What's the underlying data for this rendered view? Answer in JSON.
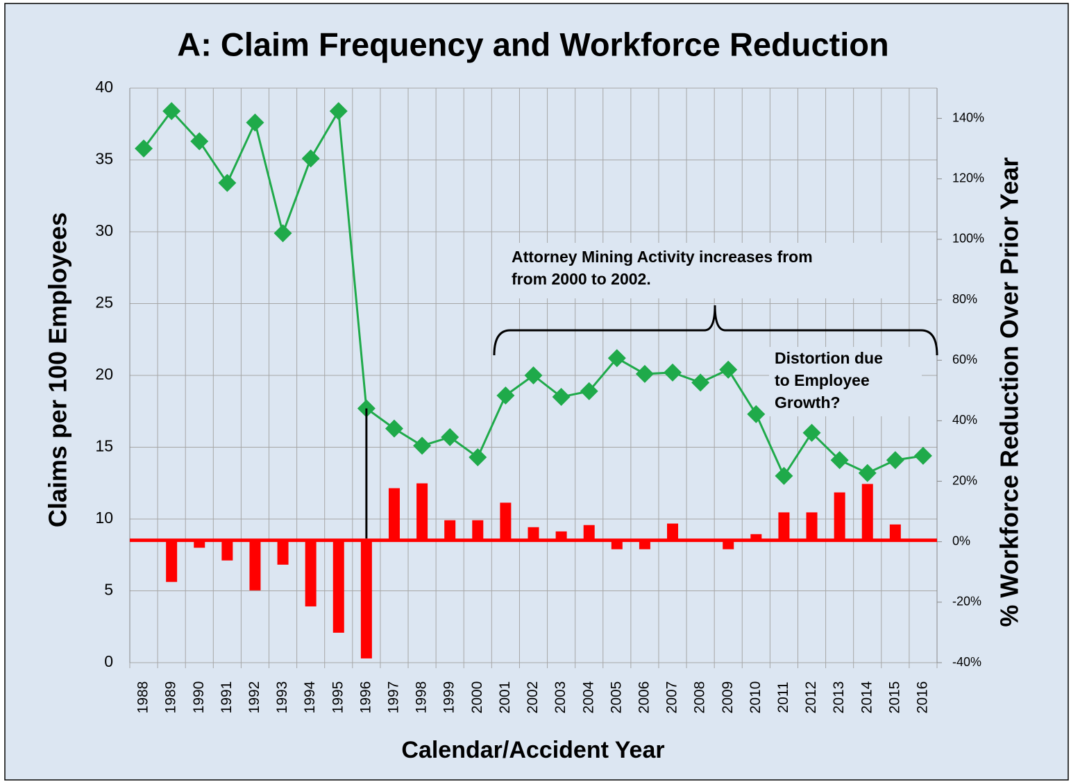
{
  "chart_data": {
    "type": "combo",
    "title": "A: Claim Frequency and Workforce Reduction",
    "xlabel": "Calendar/Accident Year",
    "ylabel": "Claims per 100 Employees",
    "y2label": "% Workforce Reduction Over Prior Year",
    "categories": [
      "1988",
      "1989",
      "1990",
      "1991",
      "1992",
      "1993",
      "1994",
      "1995",
      "1996",
      "1997",
      "1998",
      "1999",
      "2000",
      "2001",
      "2002",
      "2003",
      "2004",
      "2005",
      "2006",
      "2007",
      "2008",
      "2009",
      "2010",
      "2011",
      "2012",
      "2013",
      "2014",
      "2015",
      "2016"
    ],
    "series": [
      {
        "type": "line",
        "axis": "y",
        "color": "#1faa4a",
        "values": [
          35.8,
          38.4,
          36.3,
          33.4,
          37.6,
          29.9,
          35.1,
          38.4,
          17.7,
          16.3,
          15.1,
          15.7,
          14.3,
          18.6,
          20.0,
          18.5,
          18.9,
          21.2,
          20.1,
          20.2,
          19.5,
          20.4,
          17.3,
          13.0,
          16.0,
          14.1,
          13.2,
          14.1,
          14.4
        ]
      },
      {
        "type": "bar",
        "axis": "y2",
        "color": "#ff0000",
        "values": [
          0,
          -13.3,
          -2,
          -6.2,
          -16.1,
          -7.6,
          -21.4,
          -30.1,
          -38.6,
          17.7,
          19.3,
          7.1,
          7.1,
          12.9,
          4.8,
          3.4,
          5.5,
          -2.5,
          -2.5,
          6.0,
          0,
          -2.5,
          2.5,
          9.7,
          9.7,
          16.3,
          19.1,
          5.7,
          0.5
        ]
      }
    ],
    "ylim": [
      0,
      40
    ],
    "yticks": [
      0,
      5,
      10,
      15,
      20,
      25,
      30,
      35,
      40
    ],
    "y2lim": [
      -40,
      150
    ],
    "y2ticks": [
      {
        "value": -40,
        "label": "-40%"
      },
      {
        "value": -20,
        "label": "-20%"
      },
      {
        "value": 0,
        "label": "0%"
      },
      {
        "value": 20,
        "label": "20%"
      },
      {
        "value": 40,
        "label": "40%"
      },
      {
        "value": 60,
        "label": "60%"
      },
      {
        "value": 80,
        "label": "80%"
      },
      {
        "value": 100,
        "label": "100%"
      },
      {
        "value": 120,
        "label": "120%"
      },
      {
        "value": 140,
        "label": "140%"
      }
    ],
    "grid": true,
    "annotations": [
      {
        "lines": [
          "Attorney Mining Activity increases from",
          "from 2000 to 2002."
        ]
      },
      {
        "lines": [
          "Distortion due",
          "to Employee",
          "Growth?"
        ]
      }
    ]
  }
}
